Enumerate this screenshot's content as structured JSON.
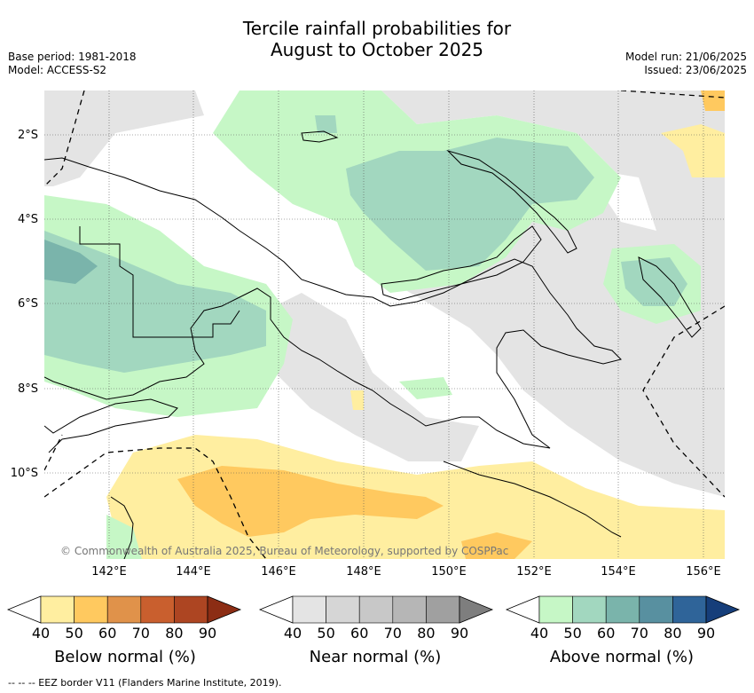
{
  "header": {
    "title_line1": "Tercile rainfall probabilities for",
    "title_line2": "August to October 2025",
    "base_period": "Base period: 1981-2018",
    "model": "Model: ACCESS-S2",
    "model_run": "Model run: 21/06/2025",
    "issued": "Issued: 23/06/2025"
  },
  "map": {
    "lat_labels": [
      "2°S",
      "4°S",
      "6°S",
      "8°S",
      "10°S"
    ],
    "lon_labels": [
      "142°E",
      "144°E",
      "146°E",
      "148°E",
      "150°E",
      "152°E",
      "154°E",
      "156°E"
    ],
    "copyright": "© Commonwealth of Australia 2025, Bureau of Meteorology, supported by COSPPac"
  },
  "legend": {
    "below": {
      "title": "Below normal (%)",
      "ticks": [
        "40",
        "50",
        "60",
        "70",
        "80",
        "90"
      ],
      "colors": [
        "#ffeea0",
        "#ffc95f",
        "#e0924a",
        "#c95f2e",
        "#ad4522",
        "#8c2d14"
      ]
    },
    "near": {
      "title": "Near normal (%)",
      "ticks": [
        "40",
        "50",
        "60",
        "70",
        "80",
        "90"
      ],
      "colors": [
        "#e4e4e4",
        "#d6d6d6",
        "#c8c8c8",
        "#b6b6b6",
        "#a0a0a0",
        "#7e7e7e"
      ]
    },
    "above": {
      "title": "Above normal (%)",
      "ticks": [
        "40",
        "50",
        "60",
        "70",
        "80",
        "90"
      ],
      "colors": [
        "#c6f7c6",
        "#a2d7bf",
        "#7ab4ab",
        "#5890a0",
        "#2f6499",
        "#163e7a"
      ]
    }
  },
  "footnote": "--  --  -- EEZ border V11 (Flanders Marine Institute, 2019)."
}
